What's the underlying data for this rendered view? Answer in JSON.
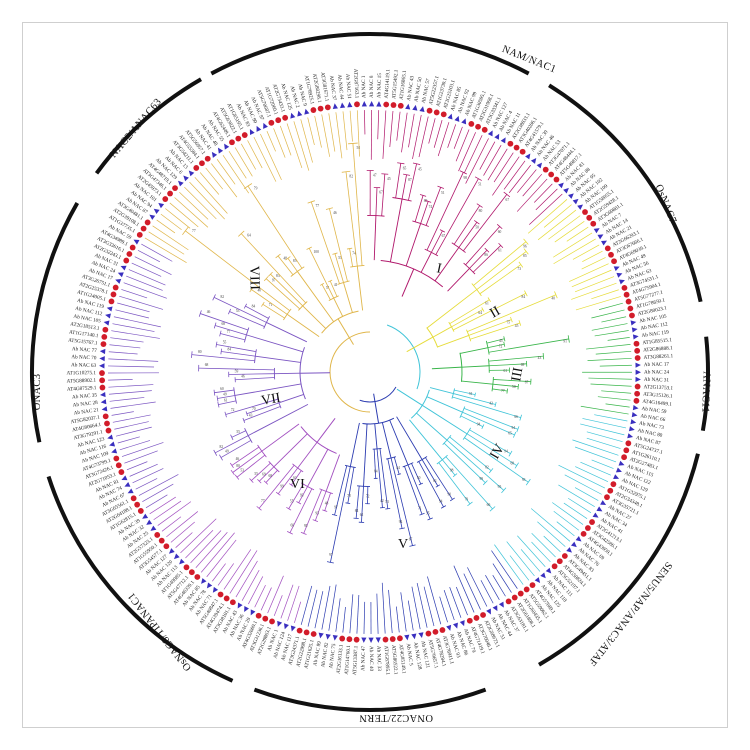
{
  "groups": [
    {
      "id": "nam",
      "label": "NAM/NAC1"
    },
    {
      "id": "onac7",
      "label": "OsNAC7"
    },
    {
      "id": "anac11",
      "label": "ANAC11"
    },
    {
      "id": "senu5",
      "label": "SENU5/NAP/ANAC3/ATAF"
    },
    {
      "id": "onac22",
      "label": "ONAC22/TERN"
    },
    {
      "id": "osnac8",
      "label": "OsNAC8/TIPANAC1"
    },
    {
      "id": "onac3",
      "label": "ONAC3"
    },
    {
      "id": "nac2",
      "label": "NAC2/ANAC63"
    }
  ],
  "clades": [
    {
      "id": "I",
      "label": "I",
      "color": "#b0176b"
    },
    {
      "id": "II",
      "label": "II",
      "color": "#e6dc3a"
    },
    {
      "id": "III",
      "label": "III",
      "color": "#39b54a"
    },
    {
      "id": "IV",
      "label": "IV",
      "color": "#40c4d8"
    },
    {
      "id": "V",
      "label": "V",
      "color": "#2b3bb0"
    },
    {
      "id": "VI",
      "label": "VI",
      "color": "#a24fc0"
    },
    {
      "id": "VII",
      "label": "VII",
      "color": "#7b55c2"
    },
    {
      "id": "VIII",
      "label": "VIII",
      "color": "#e0b64a"
    }
  ],
  "legend_markers": {
    "ab_color": "#3a2fbf",
    "at_color": "#d21c2a"
  },
  "leaf_prefixes": {
    "ab": "Ab NAC",
    "at": "AT"
  }
}
